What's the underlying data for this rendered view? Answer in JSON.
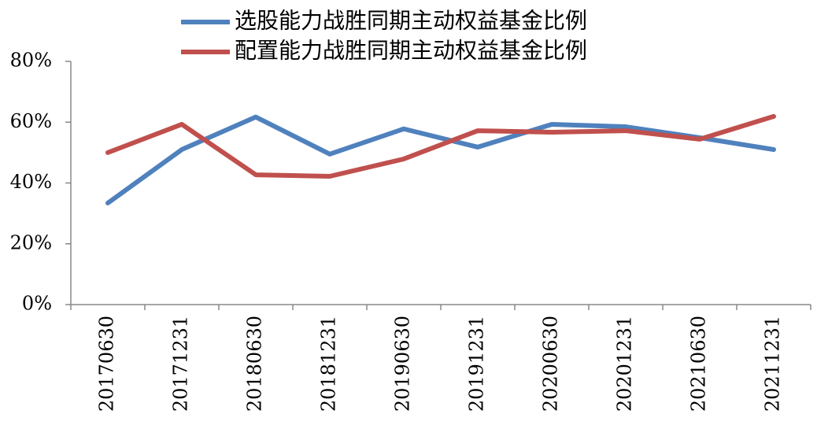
{
  "chart_data": {
    "type": "line",
    "categories": [
      "20170630",
      "20171231",
      "20180630",
      "20181231",
      "20190630",
      "20191231",
      "20200630",
      "20201231",
      "20210630",
      "20211231"
    ],
    "series": [
      {
        "name": "选股能力战胜同期主动权益基金比例",
        "color": "#4f81bd",
        "values": [
          33.4,
          51,
          61.7,
          49.5,
          57.8,
          51.8,
          59.3,
          58.5,
          54.9,
          51
        ]
      },
      {
        "name": "配置能力战胜同期主动权益基金比例",
        "color": "#c0504d",
        "values": [
          50,
          59.3,
          42.7,
          42.2,
          47.9,
          57.2,
          56.7,
          57.2,
          54.4,
          61.9
        ]
      }
    ],
    "ylim": [
      0,
      80
    ],
    "yticks": [
      {
        "value": 0,
        "label": "0%"
      },
      {
        "value": 20,
        "label": "20%"
      },
      {
        "value": 40,
        "label": "40%"
      },
      {
        "value": 60,
        "label": "60%"
      },
      {
        "value": 80,
        "label": "80%"
      }
    ],
    "grid": false
  }
}
